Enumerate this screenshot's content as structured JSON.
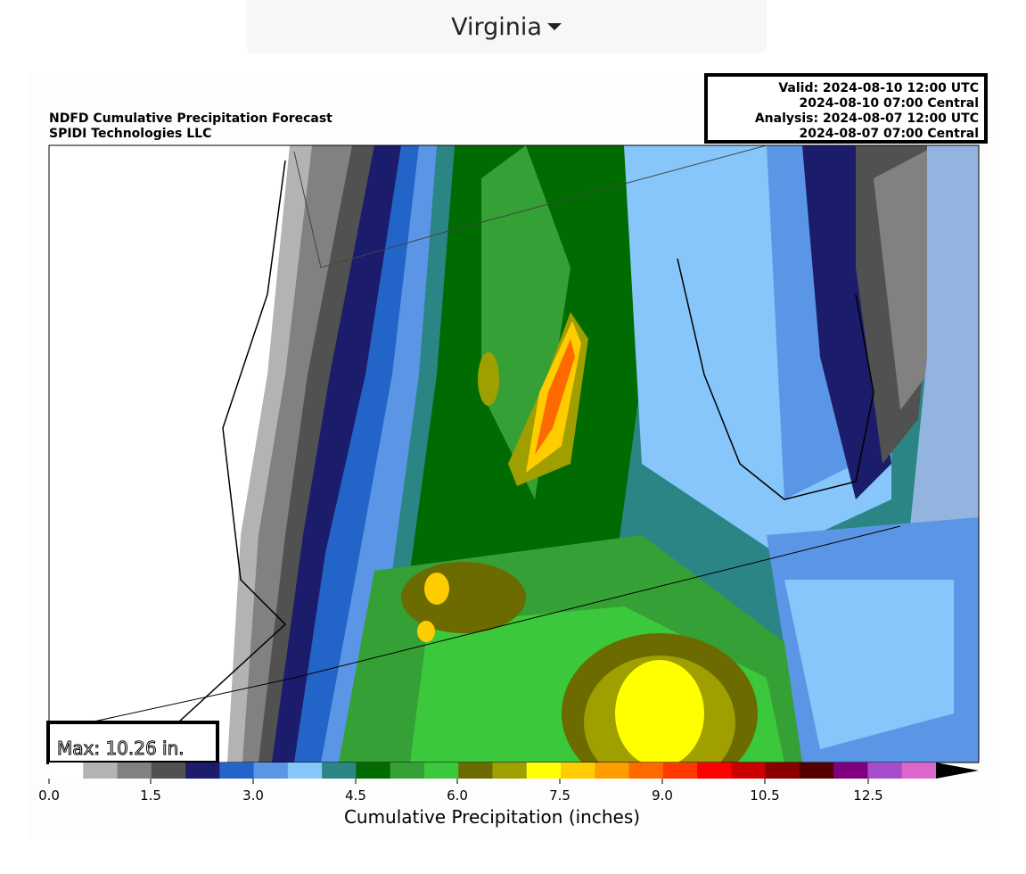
{
  "dropdown": {
    "label": "Virginia"
  },
  "figure": {
    "title": "NDFD Cumulative Precipitation Forecast",
    "subtitle": "SPIDI Technologies LLC",
    "times": [
      "Valid: 2024-08-10 12:00 UTC",
      "2024-08-10 07:00 Central",
      "Analysis: 2024-08-07 12:00 UTC",
      "2024-08-07 07:00 Central"
    ],
    "max_label": "Max: 10.26 in.",
    "colorbar": {
      "ticks": [
        "0.0",
        "1.5",
        "3.0",
        "4.5",
        "6.0",
        "7.5",
        "9.0",
        "10.5",
        "12.5"
      ],
      "label": "Cumulative Precipitation (inches)",
      "colors": [
        "#ffffff",
        "#b3b3b3",
        "#818181",
        "#515151",
        "#1c1c6c",
        "#2364c8",
        "#5b96e6",
        "#86c6fa",
        "#2c8585",
        "#006b00",
        "#35a035",
        "#3cc83c",
        "#6b6b00",
        "#9f9f00",
        "#ffff00",
        "#ffcc00",
        "#ff9d00",
        "#ff6a00",
        "#ff3a00",
        "#ff0000",
        "#cc0000",
        "#8a0000",
        "#550000",
        "#800080",
        "#a64ccc",
        "#dd66cc"
      ]
    }
  }
}
